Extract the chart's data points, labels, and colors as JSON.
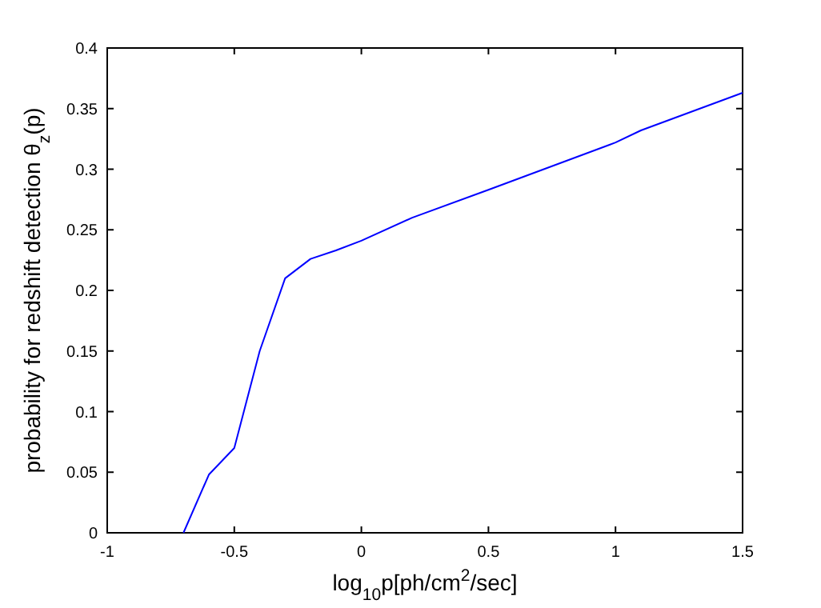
{
  "chart_data": {
    "type": "line",
    "xlabel": "log$_{10}$p[ph/cm$^{2}$/sec]",
    "ylabel": "probability for redshift detection θ$_{z}$(p)",
    "xlim": [
      -1,
      1.5
    ],
    "xticks": [
      -1,
      -0.5,
      0,
      0.5,
      1,
      1.5
    ],
    "ylim": [
      0,
      0.4
    ],
    "yticks": [
      0,
      0.05,
      0.1,
      0.15,
      0.2,
      0.25,
      0.3,
      0.35,
      0.4
    ],
    "grid": false,
    "marker": "none",
    "line_style": "solid",
    "series": [
      {
        "color": "#0000ff",
        "x": [
          -0.7,
          -0.6,
          -0.5,
          -0.4,
          -0.3,
          -0.2,
          -0.1,
          0,
          0.2,
          0.5,
          1,
          1.1,
          1.5
        ],
        "values": [
          0,
          0.048,
          0.07,
          0.15,
          0.21,
          0.226,
          0.233,
          0.241,
          0.26,
          0.283,
          0.322,
          0.332,
          0.363
        ]
      }
    ]
  }
}
